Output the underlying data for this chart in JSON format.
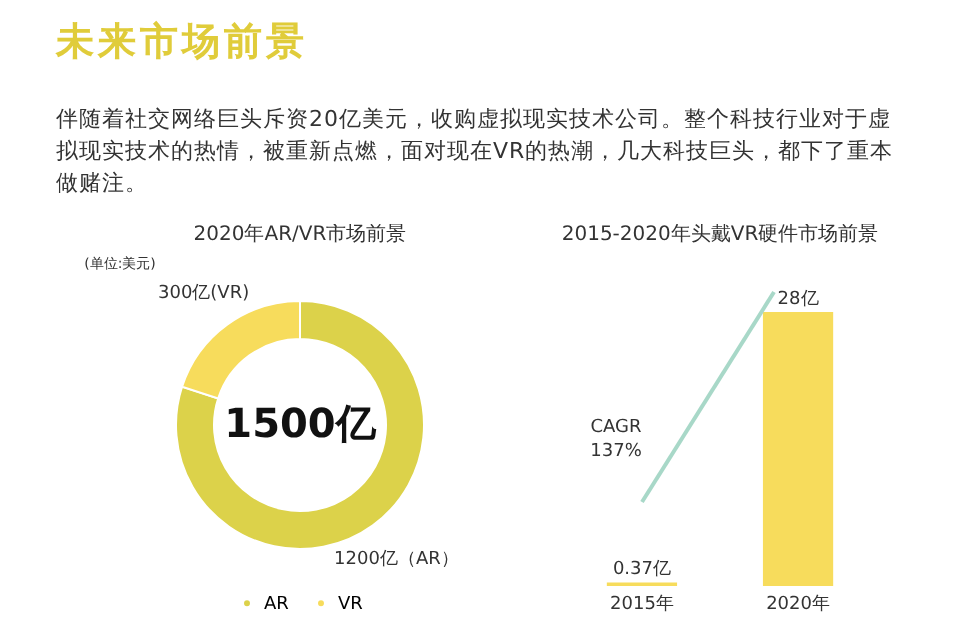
{
  "chart_data": [
    {
      "type": "other",
      "title": "未来市场前景",
      "annotations": [
        "伴随着社交网络巨头斥资20亿美元，收购虚拟现实技术公司。整个科技行业对于虚拟现实技术的热情，被重新点燃，面对现在VR的热潮，几大科技巨头，都下了重本做赌注。"
      ]
    },
    {
      "type": "donut",
      "title": "2020年AR/VR市场前景",
      "categories": [
        "AR",
        "VR"
      ],
      "values": [
        1200,
        300
      ],
      "colors": [
        "#dcd24a",
        "#f7dc5c"
      ],
      "value_labels": [
        "1200亿（AR）",
        "300亿(VR)"
      ],
      "annotations": [
        "1500亿",
        "(单位:美元)"
      ],
      "legend": "bottom"
    },
    {
      "type": "bar",
      "title": "2015-2020年头戴VR硬件市场前景",
      "categories": [
        "2015年",
        "2020年"
      ],
      "values": [
        0.37,
        28
      ],
      "color": "#f7dc5c",
      "value_labels": [
        "0.37亿",
        "28亿"
      ],
      "annotations": [
        "CAGR\n137%"
      ]
    }
  ]
}
